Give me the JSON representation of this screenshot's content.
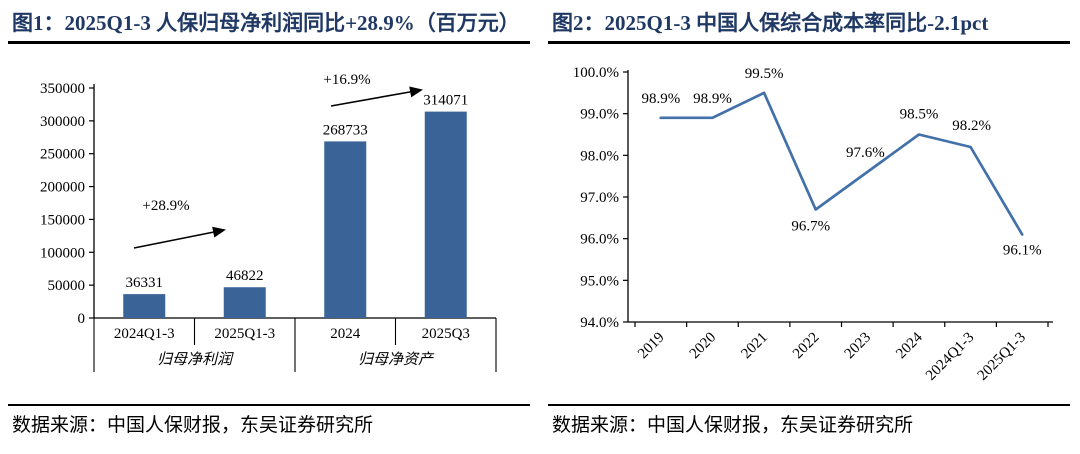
{
  "colors": {
    "accent_bar": "#3A6398",
    "accent_line": "#4270A8",
    "title_navy": "#1F3864",
    "axis_black": "#000000",
    "background": "#FFFFFF"
  },
  "panels": [
    {
      "title": "图1：2025Q1-3 人保归母净利润同比+28.9%（百万元）",
      "source": "数据来源：中国人保财报，东吴证券研究所"
    },
    {
      "title": "图2：2025Q1-3 中国人保综合成本率同比-2.1pct",
      "source": "数据来源：中国人保财报，东吴证券研究所"
    }
  ],
  "chart_data": [
    {
      "type": "bar",
      "title": "图1：2025Q1-3 人保归母净利润同比+28.9%（百万元）",
      "categories": [
        "2024Q1-3",
        "2025Q1-3",
        "2024",
        "2025Q3"
      ],
      "group_labels": [
        "归母净利润",
        "归母净资产"
      ],
      "values": [
        36331,
        46822,
        268733,
        314071
      ],
      "value_labels": [
        "36331",
        "46822",
        "268733",
        "314071"
      ],
      "annotations": [
        "+28.9%",
        "+16.9%"
      ],
      "xlabel": "",
      "ylabel": "",
      "ylim": [
        0,
        350000
      ],
      "yticks": [
        "0",
        "50000",
        "100000",
        "150000",
        "200000",
        "250000",
        "300000",
        "350000"
      ],
      "grid": false,
      "legend": "none"
    },
    {
      "type": "line",
      "title": "图2：2025Q1-3 中国人保综合成本率同比-2.1pct",
      "categories": [
        "2019",
        "2020",
        "2021",
        "2022",
        "2023",
        "2024",
        "2024Q1-3",
        "2025Q1-3"
      ],
      "values": [
        98.9,
        98.9,
        99.5,
        96.7,
        97.6,
        98.5,
        98.2,
        96.1
      ],
      "point_labels": [
        "98.9%",
        "98.9%",
        "99.5%",
        "96.7%",
        "97.6%",
        "98.5%",
        "98.2%",
        "96.1%"
      ],
      "xlabel": "",
      "ylabel": "",
      "ylim": [
        94.0,
        100.0
      ],
      "yticks": [
        "94.0%",
        "95.0%",
        "96.0%",
        "97.0%",
        "98.0%",
        "99.0%",
        "100.0%"
      ],
      "grid": false,
      "legend": "none"
    }
  ]
}
